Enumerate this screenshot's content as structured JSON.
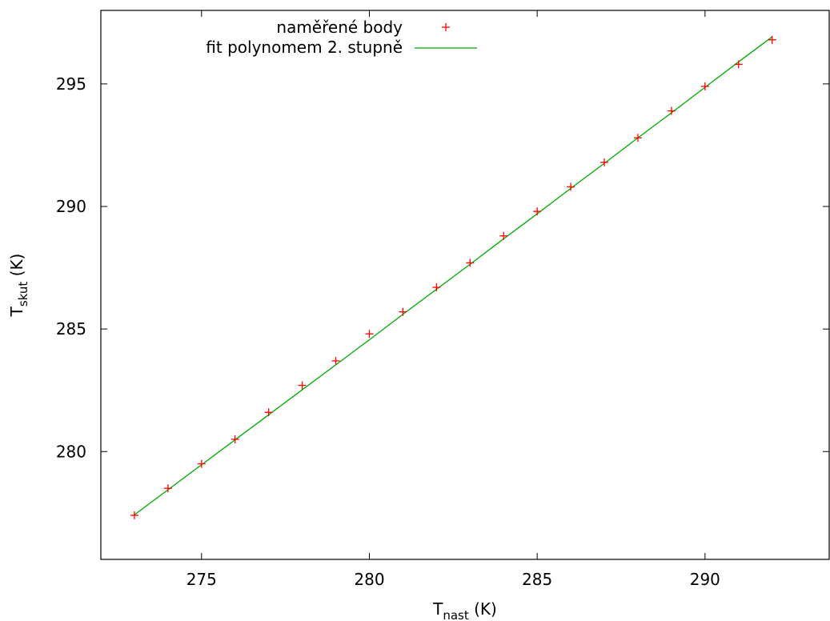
{
  "chart_data": {
    "type": "scatter",
    "title": "",
    "xlabel": {
      "main": "T",
      "sub": "nast",
      "unit": " (K)"
    },
    "ylabel": {
      "main": "T",
      "sub": "skut",
      "unit": " (K)"
    },
    "xlim": [
      272,
      293.7
    ],
    "ylim": [
      275.6,
      298.0
    ],
    "xticks": [
      275,
      280,
      285,
      290
    ],
    "yticks": [
      280,
      285,
      290,
      295
    ],
    "grid": false,
    "legend_position": "top-center",
    "series": [
      {
        "name": "naměřené body",
        "kind": "points",
        "marker": "plus",
        "color": "#ff0000",
        "x": [
          273,
          274,
          275,
          276,
          277,
          278,
          279,
          280,
          281,
          282,
          283,
          284,
          285,
          286,
          287,
          288,
          289,
          290,
          291,
          292
        ],
        "y": [
          277.4,
          278.5,
          279.5,
          280.5,
          281.6,
          282.7,
          283.7,
          284.8,
          285.7,
          286.7,
          287.7,
          288.8,
          289.8,
          290.8,
          291.8,
          292.8,
          293.9,
          294.9,
          295.8,
          296.8
        ]
      },
      {
        "name": "fit polynomem 2. stupně",
        "kind": "line",
        "color": "#00aa00",
        "x": [
          273,
          274,
          275,
          276,
          277,
          278,
          279,
          280,
          281,
          282,
          283,
          284,
          285,
          286,
          287,
          288,
          289,
          290,
          291,
          292
        ],
        "y": [
          277.42,
          278.44,
          279.46,
          280.48,
          281.5,
          282.52,
          283.54,
          284.56,
          285.6,
          286.62,
          287.64,
          288.68,
          289.7,
          290.74,
          291.76,
          292.8,
          293.82,
          294.86,
          295.9,
          296.92
        ]
      }
    ]
  }
}
